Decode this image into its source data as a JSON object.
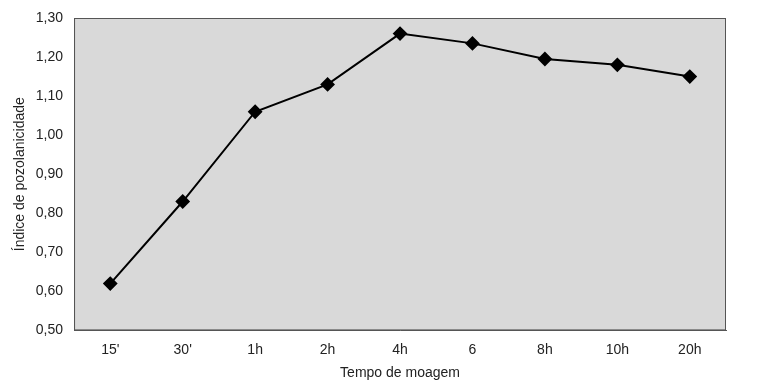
{
  "chart_data": {
    "type": "line",
    "x_label": "Tempo de moagem",
    "y_label": "Índice de pozolanicidade",
    "categories": [
      "15'",
      "30'",
      "1h",
      "2h",
      "4h",
      "6",
      "8h",
      "10h",
      "20h"
    ],
    "values": [
      0.62,
      0.83,
      1.06,
      1.13,
      1.26,
      1.235,
      1.195,
      1.18,
      1.15
    ],
    "color": "#000000",
    "marker": "diamond",
    "ylim": [
      0.5,
      1.3
    ],
    "yticks": [
      {
        "value": 0.5,
        "label": "0,50"
      },
      {
        "value": 0.6,
        "label": "0,60"
      },
      {
        "value": 0.7,
        "label": "0,70"
      },
      {
        "value": 0.8,
        "label": "0,80"
      },
      {
        "value": 0.9,
        "label": "0,90"
      },
      {
        "value": 1.0,
        "label": "1,00"
      },
      {
        "value": 1.1,
        "label": "1,10"
      },
      {
        "value": 1.2,
        "label": "1,20"
      },
      {
        "value": 1.3,
        "label": "1,30"
      }
    ],
    "grid": false
  }
}
